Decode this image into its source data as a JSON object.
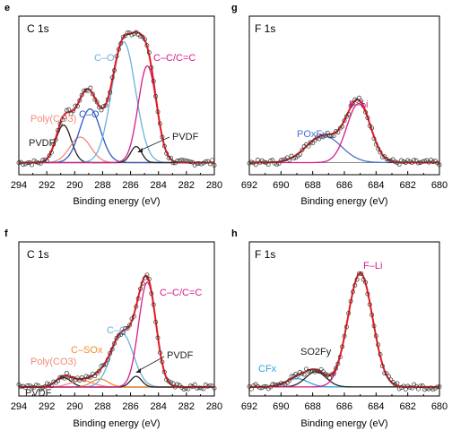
{
  "colors": {
    "envelope": "#e8191f",
    "pvdf": "#222222",
    "poly": "#f08a7a",
    "co_blue": "#2f59c2",
    "co_light": "#6ab0dc",
    "cc": "#d81b8a",
    "fli": "#d81b8a",
    "pof": "#4a6fd0",
    "cfx": "#2aa6de",
    "so2f": "#222222",
    "orange": "#f28c28",
    "background_line": "#888888",
    "points": "#333333"
  },
  "chart_data": [
    {
      "id": "e",
      "type": "line",
      "panel_letter": "e",
      "title": "C 1s",
      "xlabel": "Binding energy (eV)",
      "xlim": [
        294,
        280
      ],
      "x_ticks": [
        "294",
        "292",
        "290",
        "288",
        "286",
        "284",
        "282",
        "280"
      ],
      "baseline": 0.03,
      "series": [
        {
          "name": "PVDF",
          "center": 290.8,
          "width": 0.55,
          "amp": 0.28,
          "color": "pvdf"
        },
        {
          "name": "Poly(CO3)",
          "center": 289.6,
          "width": 0.75,
          "amp": 0.19,
          "color": "poly"
        },
        {
          "name": "C–O",
          "center": 288.9,
          "width": 0.75,
          "amp": 0.4,
          "color": "co_blue"
        },
        {
          "name": "C–O",
          "center": 286.5,
          "width": 0.85,
          "amp": 0.9,
          "color": "co_light"
        },
        {
          "name": "PVDF",
          "center": 285.6,
          "width": 0.4,
          "amp": 0.12,
          "color": "pvdf"
        },
        {
          "name": "C–C/C=C",
          "center": 284.8,
          "width": 0.65,
          "amp": 0.72,
          "color": "cc"
        }
      ],
      "annotations": [
        {
          "text": "C–O",
          "color": "co_light"
        },
        {
          "text": "C–C/C=C",
          "color": "cc"
        },
        {
          "text": "Poly(CO3)",
          "color": "poly"
        },
        {
          "text": "C–O",
          "color": "co_blue"
        },
        {
          "text": "PVDF",
          "color": "pvdf"
        },
        {
          "text": "PVDF",
          "color": "pvdf"
        }
      ]
    },
    {
      "id": "g",
      "type": "line",
      "panel_letter": "g",
      "title": "F 1s",
      "xlabel": "Binding energy (eV)",
      "xlim": [
        692,
        680
      ],
      "x_ticks": [
        "692",
        "690",
        "688",
        "686",
        "684",
        "682",
        "680"
      ],
      "baseline": 0.03,
      "series": [
        {
          "name": "POxFy",
          "center": 687.3,
          "width": 1.1,
          "amp": 0.2,
          "color": "pof"
        },
        {
          "name": "F–Li",
          "center": 685.1,
          "width": 0.75,
          "amp": 0.44,
          "color": "fli"
        }
      ],
      "annotations": [
        {
          "text": "F–Li",
          "color": "fli"
        },
        {
          "text": "POxFy",
          "color": "pof"
        }
      ]
    },
    {
      "id": "f",
      "type": "line",
      "panel_letter": "f",
      "title": "C 1s",
      "xlabel": "Binding energy (eV)",
      "xlim": [
        294,
        280
      ],
      "x_ticks": [
        "294",
        "292",
        "290",
        "288",
        "286",
        "284",
        "282",
        "280"
      ],
      "baseline": 0.02,
      "series": [
        {
          "name": "PVDF",
          "center": 290.8,
          "width": 0.55,
          "amp": 0.07,
          "color": "pvdf"
        },
        {
          "name": "Poly(CO3)",
          "center": 289.5,
          "width": 0.8,
          "amp": 0.05,
          "color": "poly"
        },
        {
          "name": "C–SOx",
          "center": 288.2,
          "width": 0.6,
          "amp": 0.06,
          "color": "orange"
        },
        {
          "name": "C–O",
          "center": 286.6,
          "width": 0.8,
          "amp": 0.4,
          "color": "co_light"
        },
        {
          "name": "PVDF",
          "center": 285.6,
          "width": 0.4,
          "amp": 0.08,
          "color": "pvdf"
        },
        {
          "name": "C–C/C=C",
          "center": 284.8,
          "width": 0.62,
          "amp": 0.78,
          "color": "cc"
        }
      ],
      "annotations": [
        {
          "text": "C–C/C=C",
          "color": "cc"
        },
        {
          "text": "C–O",
          "color": "co_light"
        },
        {
          "text": "C–SOx",
          "color": "orange"
        },
        {
          "text": "Poly(CO3)",
          "color": "poly"
        },
        {
          "text": "PVDF",
          "color": "pvdf"
        },
        {
          "text": "PVDF",
          "color": "pvdf"
        }
      ]
    },
    {
      "id": "h",
      "type": "line",
      "panel_letter": "h",
      "title": "F 1s",
      "xlabel": "Binding energy (eV)",
      "xlim": [
        692,
        680
      ],
      "x_ticks": [
        "692",
        "690",
        "688",
        "686",
        "684",
        "682",
        "680"
      ],
      "baseline": 0.02,
      "series": [
        {
          "name": "CFx",
          "center": 689.0,
          "width": 0.7,
          "amp": 0.06,
          "color": "cfx"
        },
        {
          "name": "SO2Fy",
          "center": 687.8,
          "width": 0.65,
          "amp": 0.11,
          "color": "so2f"
        },
        {
          "name": "F–Li",
          "center": 685.0,
          "width": 0.78,
          "amp": 0.82,
          "color": "fli"
        }
      ],
      "annotations": [
        {
          "text": "F–Li",
          "color": "fli"
        },
        {
          "text": "SO2Fy",
          "color": "so2f"
        },
        {
          "text": "CFx",
          "color": "cfx"
        }
      ]
    }
  ]
}
